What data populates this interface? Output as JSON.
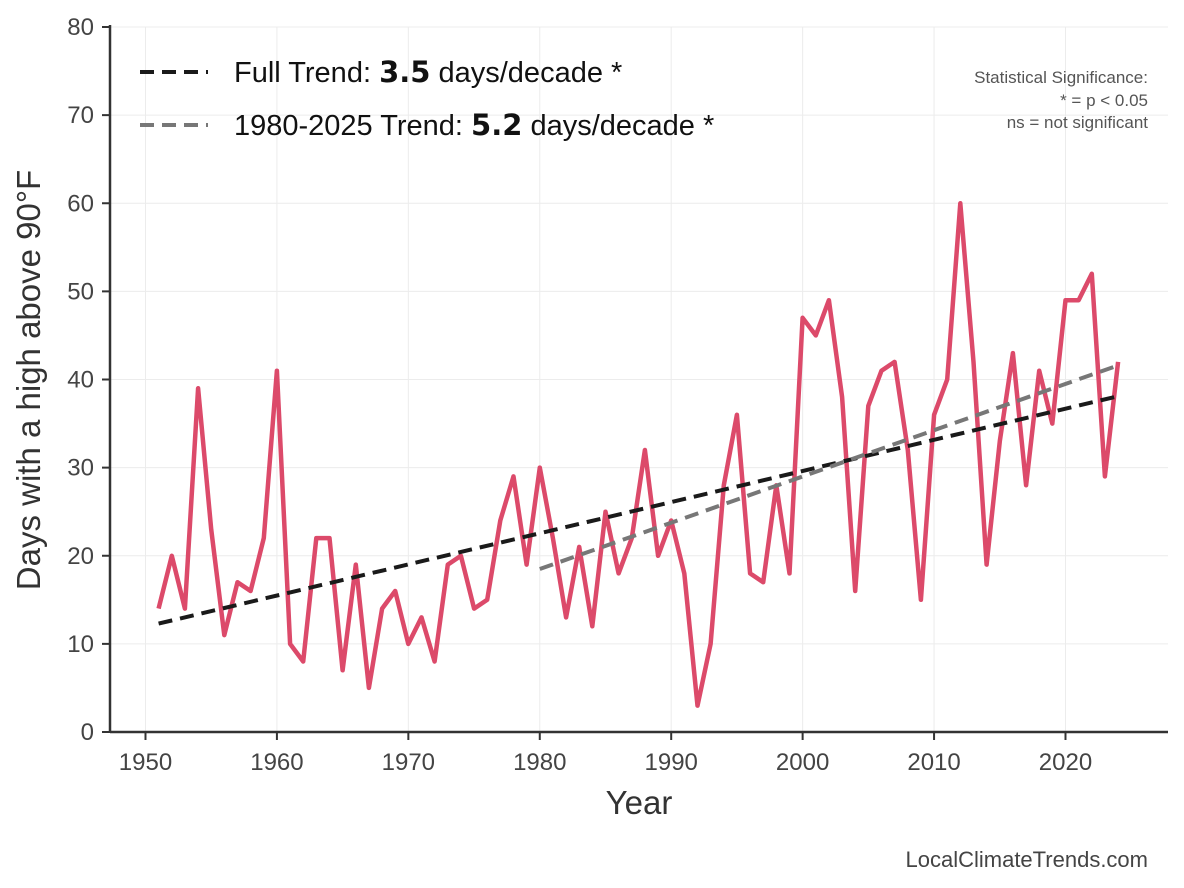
{
  "chart_data": {
    "type": "line",
    "xlabel": "Year",
    "ylabel": "Days with a high above 90°F",
    "xlim": [
      1947.3,
      2027.8
    ],
    "ylim": [
      0,
      80
    ],
    "x_ticks": [
      1950,
      1960,
      1970,
      1980,
      1990,
      2000,
      2010,
      2020
    ],
    "y_ticks": [
      0,
      10,
      20,
      30,
      40,
      50,
      60,
      70,
      80
    ],
    "grid": true,
    "legend_position": "top-left",
    "series": [
      {
        "color": "#dc4a6a",
        "x": [
          1951,
          1952,
          1953,
          1954,
          1955,
          1956,
          1957,
          1958,
          1959,
          1960,
          1961,
          1962,
          1963,
          1964,
          1965,
          1966,
          1967,
          1968,
          1969,
          1970,
          1971,
          1972,
          1973,
          1974,
          1975,
          1976,
          1977,
          1978,
          1979,
          1980,
          1981,
          1982,
          1983,
          1984,
          1985,
          1986,
          1987,
          1988,
          1989,
          1990,
          1991,
          1992,
          1993,
          1994,
          1995,
          1996,
          1997,
          1998,
          1999,
          2000,
          2001,
          2002,
          2003,
          2004,
          2005,
          2006,
          2007,
          2008,
          2009,
          2010,
          2011,
          2012,
          2013,
          2014,
          2015,
          2016,
          2017,
          2018,
          2019,
          2020,
          2021,
          2022,
          2023,
          2024
        ],
        "values": [
          14,
          20,
          14,
          39,
          23,
          11,
          17,
          16,
          22,
          41,
          10,
          8,
          22,
          22,
          7,
          19,
          5,
          14,
          16,
          10,
          13,
          8,
          19,
          20,
          14,
          15,
          24,
          29,
          19,
          30,
          22,
          13,
          21,
          12,
          25,
          18,
          22,
          32,
          20,
          24,
          18,
          3,
          10,
          28,
          36,
          18,
          17,
          28,
          18,
          47,
          45,
          49,
          38,
          16,
          37,
          41,
          42,
          32,
          15,
          36,
          40,
          60,
          42,
          19,
          33,
          43,
          28,
          41,
          35,
          49,
          49,
          52,
          29,
          42
        ]
      },
      {
        "name": "Full Trend",
        "color": "#1a1a1a",
        "dashed": true,
        "x": [
          1951,
          2024
        ],
        "values": [
          12.3,
          38.1
        ]
      },
      {
        "name": "1980-2025 Trend",
        "color": "#777777",
        "dashed": true,
        "x": [
          1980,
          2024
        ],
        "values": [
          18.5,
          41.6
        ]
      }
    ],
    "legend": [
      {
        "prefix": "Full Trend: ",
        "value": "3.5",
        "suffix": " days/decade *",
        "color": "#1a1a1a"
      },
      {
        "prefix": "1980-2025 Trend: ",
        "value": "5.2",
        "suffix": " days/decade *",
        "color": "#777777"
      }
    ],
    "annotation": {
      "lines": [
        "Statistical Significance:",
        "* = p < 0.05",
        "ns = not significant"
      ]
    },
    "credit": "LocalClimateTrends.com"
  }
}
